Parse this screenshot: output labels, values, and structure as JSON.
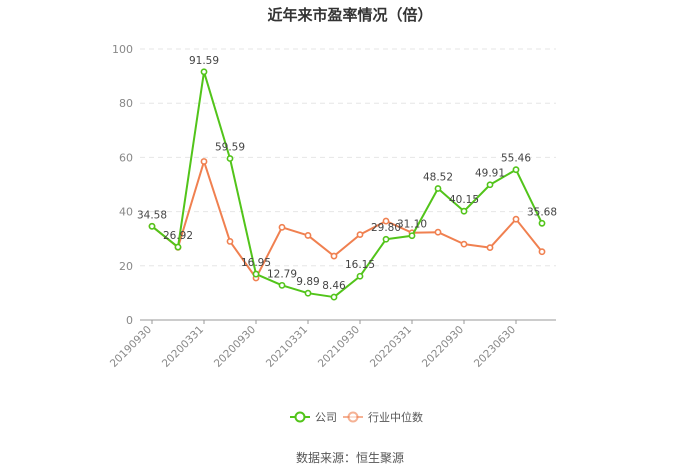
{
  "chart_data": {
    "type": "line",
    "title": "近年来市盈率情况（倍）",
    "source": "数据来源：恒生聚源",
    "xlabel": "",
    "ylabel": "",
    "ylim": [
      0,
      100
    ],
    "yticks": [
      0,
      20,
      40,
      60,
      80,
      100
    ],
    "grid": true,
    "legend_position": "bottom",
    "x_tick_labels": [
      "20190930",
      "20200331",
      "20200930",
      "20210331",
      "20210930",
      "20220331",
      "20220930",
      "20230630"
    ],
    "x_tick_index": [
      0,
      2,
      4,
      6,
      8,
      10,
      12,
      14
    ],
    "point_count": 16,
    "series": [
      {
        "name": "公司",
        "color": "#52c41a",
        "values": [
          34.58,
          26.92,
          91.59,
          59.59,
          16.95,
          12.79,
          9.89,
          8.46,
          16.15,
          29.8,
          31.1,
          48.52,
          40.15,
          49.91,
          55.46,
          35.68
        ],
        "labels": [
          "34.58",
          "26.92",
          "91.59",
          "59.59",
          "16.95",
          "12.79",
          "9.89",
          "8.46",
          "16.15",
          "29.80",
          "31.10",
          "48.52",
          "40.15",
          "49.91",
          "55.46",
          "35.68"
        ]
      },
      {
        "name": "行业中位数",
        "color": "#f08050",
        "values": [
          34.6,
          26.8,
          58.5,
          29.0,
          15.5,
          34.2,
          31.2,
          23.6,
          31.5,
          36.5,
          32.2,
          32.4,
          28.0,
          26.7,
          37.2,
          25.2
        ]
      }
    ]
  }
}
